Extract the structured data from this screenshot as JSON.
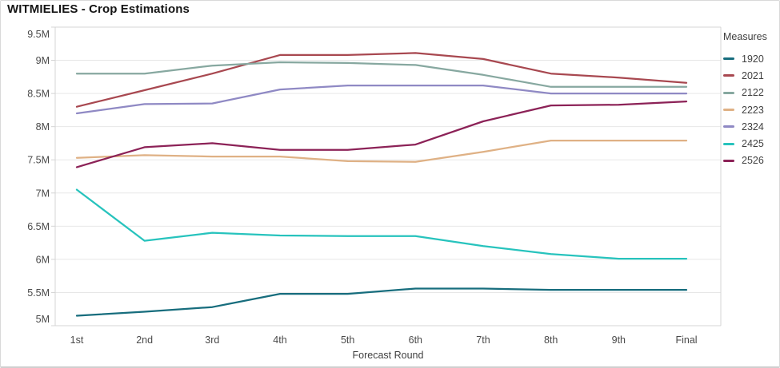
{
  "title": "WITMIELIES - Crop Estimations",
  "legend": {
    "title": "Measures"
  },
  "axes": {
    "x_title": "Forecast Round",
    "y_tick_labels": [
      "9.5M",
      "9M",
      "8.5M",
      "8M",
      "7.5M",
      "7M",
      "6.5M",
      "6M",
      "5.5M",
      "5M"
    ]
  },
  "colors": {
    "background": "#ffffff",
    "window_border": "#d9d9d9",
    "gridline": "#e7e7e7",
    "axis_line": "#d4d4d4",
    "tick_text": "#4a4a4a",
    "axis_title_text": "#404040",
    "legend_text": "#404040",
    "title_text": "#141414"
  },
  "chart_data": {
    "type": "line",
    "title": "WITMIELIES - Crop Estimations",
    "xlabel": "Forecast Round",
    "ylabel": "",
    "ylim": [
      5000000,
      9500000
    ],
    "ytick_step": 500000,
    "grid": "horizontal",
    "legend_position": "right",
    "legend_title": "Measures",
    "categories": [
      "1st",
      "2nd",
      "3rd",
      "4th",
      "5th",
      "6th",
      "7th",
      "8th",
      "9th",
      "Final"
    ],
    "series": [
      {
        "name": "1920",
        "color": "#176d7d",
        "values": [
          5150000,
          5210000,
          5280000,
          5480000,
          5480000,
          5560000,
          5560000,
          5540000,
          5540000,
          5540000
        ]
      },
      {
        "name": "2021",
        "color": "#a84850",
        "values": [
          8300000,
          8550000,
          8800000,
          9080000,
          9080000,
          9110000,
          9020000,
          8800000,
          8740000,
          8660000
        ]
      },
      {
        "name": "2122",
        "color": "#87a8a0",
        "values": [
          8800000,
          8800000,
          8920000,
          8970000,
          8960000,
          8930000,
          8780000,
          8600000,
          8600000,
          8600000
        ]
      },
      {
        "name": "2223",
        "color": "#dfb185",
        "values": [
          7530000,
          7570000,
          7550000,
          7550000,
          7480000,
          7470000,
          7620000,
          7790000,
          7790000,
          7790000
        ]
      },
      {
        "name": "2324",
        "color": "#8f89c4",
        "values": [
          8200000,
          8340000,
          8350000,
          8560000,
          8620000,
          8620000,
          8620000,
          8500000,
          8500000,
          8500000
        ]
      },
      {
        "name": "2425",
        "color": "#27c3bd",
        "values": [
          7050000,
          6280000,
          6400000,
          6360000,
          6350000,
          6350000,
          6200000,
          6080000,
          6010000,
          6010000
        ]
      },
      {
        "name": "2526",
        "color": "#8c2257",
        "values": [
          7390000,
          7690000,
          7750000,
          7650000,
          7650000,
          7730000,
          8080000,
          8320000,
          8330000,
          8380000
        ]
      }
    ]
  }
}
